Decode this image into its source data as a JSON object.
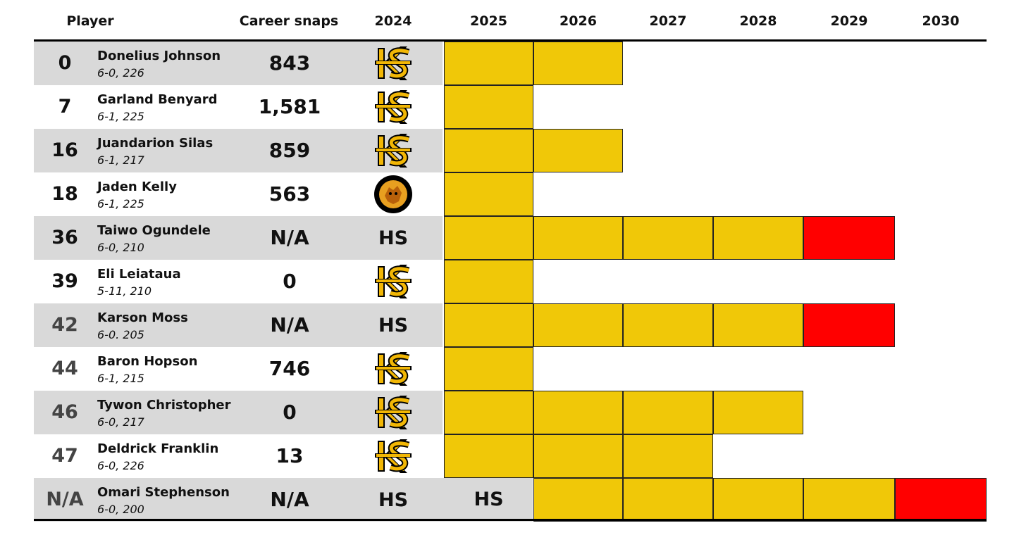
{
  "headers": {
    "player": "Player",
    "career_snaps": "Career snaps",
    "years": [
      "2024",
      "2025",
      "2026",
      "2027",
      "2028",
      "2029",
      "2030"
    ]
  },
  "colors": {
    "row_shade": "#d9d9d9",
    "year_fill": "#f0c808",
    "final_year_fill": "#ff0000",
    "rule": "#000000"
  },
  "players": [
    {
      "number": "0",
      "name": "Donelius Johnson",
      "height_weight": "6-0, 226",
      "snaps": "843",
      "prev": "ks-logo",
      "prev_text": "",
      "y2025": "",
      "years": [
        "gold",
        "gold",
        "",
        "",
        "",
        "",
        ""
      ]
    },
    {
      "number": "7",
      "name": "Garland Benyard",
      "height_weight": "6-1, 225",
      "snaps": "1,581",
      "prev": "ks-logo",
      "prev_text": "",
      "y2025": "",
      "years": [
        "gold",
        "",
        "",
        "",
        "",
        "",
        ""
      ]
    },
    {
      "number": "16",
      "name": "Juandarion Silas",
      "height_weight": "6-1, 217",
      "snaps": "859",
      "prev": "ks-logo",
      "prev_text": "",
      "y2025": "",
      "years": [
        "gold",
        "gold",
        "",
        "",
        "",
        "",
        ""
      ]
    },
    {
      "number": "18",
      "name": "Jaden Kelly",
      "height_weight": "6-1, 225",
      "snaps": "563",
      "prev": "ua-logo",
      "prev_text": "",
      "y2025": "",
      "years": [
        "gold",
        "",
        "",
        "",
        "",
        "",
        ""
      ]
    },
    {
      "number": "36",
      "name": "Taiwo Ogundele",
      "height_weight": "6-0, 210",
      "snaps": "N/A",
      "prev": "text",
      "prev_text": "HS",
      "y2025": "",
      "years": [
        "gold",
        "gold",
        "gold",
        "gold",
        "red",
        "",
        ""
      ]
    },
    {
      "number": "39",
      "name": "Eli Leiataua",
      "height_weight": "5-11, 210",
      "snaps": "0",
      "prev": "ks-logo",
      "prev_text": "",
      "y2025": "",
      "years": [
        "gold",
        "",
        "",
        "",
        "",
        "",
        ""
      ]
    },
    {
      "number": "42",
      "name": "Karson Moss",
      "height_weight": "6-0. 205",
      "snaps": "N/A",
      "prev": "text",
      "prev_text": "HS",
      "y2025": "",
      "years": [
        "gold",
        "gold",
        "gold",
        "gold",
        "red",
        "",
        ""
      ]
    },
    {
      "number": "44",
      "name": "Baron Hopson",
      "height_weight": "6-1, 215",
      "snaps": "746",
      "prev": "ks-logo",
      "prev_text": "",
      "y2025": "",
      "years": [
        "gold",
        "",
        "",
        "",
        "",
        "",
        ""
      ]
    },
    {
      "number": "46",
      "name": "Tywon Christopher",
      "height_weight": "6-0, 217",
      "snaps": "0",
      "prev": "ks-logo",
      "prev_text": "",
      "y2025": "",
      "years": [
        "gold",
        "gold",
        "gold",
        "gold",
        "",
        "",
        ""
      ]
    },
    {
      "number": "47",
      "name": "Deldrick Franklin",
      "height_weight": "6-0, 226",
      "snaps": "13",
      "prev": "ks-logo",
      "prev_text": "",
      "y2025": "",
      "years": [
        "gold",
        "gold",
        "gold",
        "",
        "",
        "",
        ""
      ]
    },
    {
      "number": "N/A",
      "name": "Omari Stephenson",
      "height_weight": "6-0, 200",
      "snaps": "N/A",
      "prev": "text",
      "prev_text": "HS",
      "y2025": "HS",
      "years": [
        "",
        "gold",
        "gold",
        "gold",
        "gold",
        "red",
        ""
      ]
    }
  ]
}
